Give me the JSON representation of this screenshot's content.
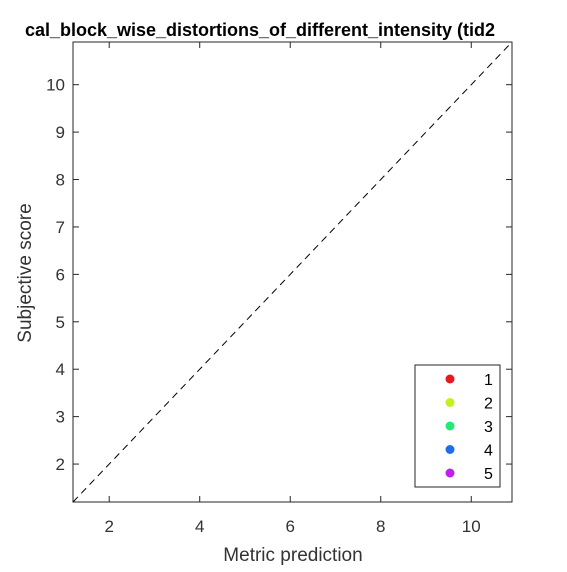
{
  "chart_data": {
    "type": "scatter",
    "title": "cal_block_wise_distortions_of_different_intensity (tid2",
    "xlabel": "Metric prediction",
    "ylabel": "Subjective score",
    "xlim": [
      1.2,
      10.9
    ],
    "ylim": [
      1.2,
      10.9
    ],
    "xticks": [
      2,
      4,
      6,
      8,
      10
    ],
    "yticks": [
      2,
      3,
      4,
      5,
      6,
      7,
      8,
      9,
      10
    ],
    "grid": false,
    "reference_line": {
      "style": "dashed",
      "color": "#000000",
      "from": [
        1.2,
        1.2
      ],
      "to": [
        10.9,
        10.9
      ]
    },
    "legend": {
      "placement": "bottom-right"
    },
    "series": [
      {
        "name": "1",
        "color": "#e8191e",
        "points": []
      },
      {
        "name": "2",
        "color": "#c4f01f",
        "points": []
      },
      {
        "name": "3",
        "color": "#1fea7a",
        "points": []
      },
      {
        "name": "4",
        "color": "#1f6ee8",
        "points": []
      },
      {
        "name": "5",
        "color": "#bf1fef",
        "points": []
      }
    ]
  }
}
